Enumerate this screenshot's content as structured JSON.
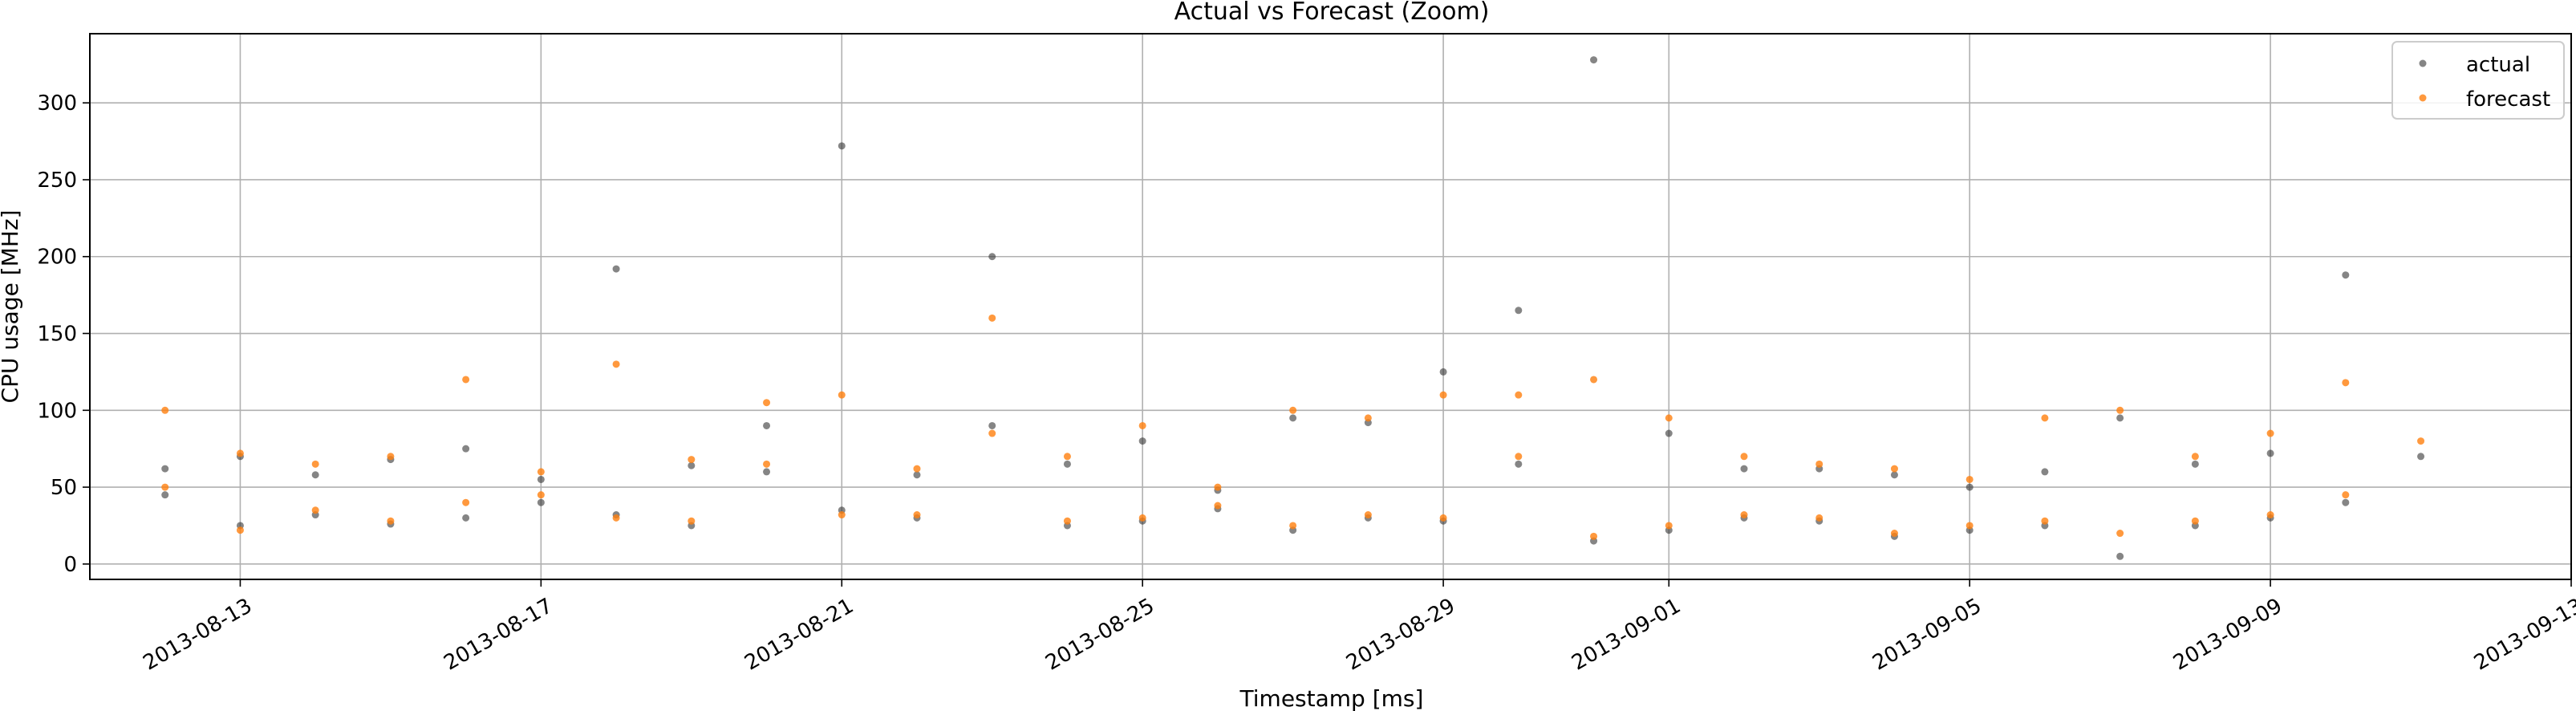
{
  "chart_data": {
    "type": "scatter",
    "title": "Actual vs Forecast (Zoom)",
    "xlabel": "Timestamp [ms]",
    "ylabel": "CPU usage [MHz]",
    "x_ticks": [
      "2013-08-13",
      "2013-08-17",
      "2013-08-21",
      "2013-08-25",
      "2013-08-29",
      "2013-09-01",
      "2013-09-05",
      "2013-09-09",
      "2013-09-13"
    ],
    "y_ticks": [
      0,
      50,
      100,
      150,
      200,
      250,
      300
    ],
    "xlim": [
      "2013-08-11",
      "2013-09-13"
    ],
    "ylim": [
      -10,
      345
    ],
    "grid": true,
    "legend_position": "top-right",
    "colors": {
      "actual": "#333333",
      "forecast": "#ff7f0e"
    },
    "series": [
      {
        "name": "actual",
        "x": [
          "2013-08-12",
          "2013-08-12",
          "2013-08-13",
          "2013-08-13",
          "2013-08-14",
          "2013-08-14",
          "2013-08-15",
          "2013-08-15",
          "2013-08-16",
          "2013-08-16",
          "2013-08-17",
          "2013-08-17",
          "2013-08-18",
          "2013-08-18",
          "2013-08-19",
          "2013-08-19",
          "2013-08-20",
          "2013-08-20",
          "2013-08-21",
          "2013-08-21",
          "2013-08-22",
          "2013-08-22",
          "2013-08-23",
          "2013-08-23",
          "2013-08-24",
          "2013-08-24",
          "2013-08-25",
          "2013-08-25",
          "2013-08-26",
          "2013-08-26",
          "2013-08-27",
          "2013-08-27",
          "2013-08-28",
          "2013-08-28",
          "2013-08-29",
          "2013-08-29",
          "2013-08-30",
          "2013-08-30",
          "2013-08-31",
          "2013-08-31",
          "2013-09-01",
          "2013-09-01",
          "2013-09-02",
          "2013-09-02",
          "2013-09-03",
          "2013-09-03",
          "2013-09-04",
          "2013-09-04",
          "2013-09-05",
          "2013-09-05",
          "2013-09-06",
          "2013-09-06",
          "2013-09-07",
          "2013-09-07",
          "2013-09-08",
          "2013-09-08",
          "2013-09-09",
          "2013-09-09",
          "2013-09-10",
          "2013-09-10",
          "2013-09-11"
        ],
        "y": [
          62,
          45,
          25,
          70,
          58,
          32,
          26,
          68,
          30,
          75,
          55,
          40,
          192,
          32,
          64,
          25,
          90,
          60,
          272,
          35,
          58,
          30,
          200,
          90,
          25,
          65,
          28,
          80,
          48,
          36,
          95,
          22,
          92,
          30,
          125,
          28,
          165,
          65,
          328,
          15,
          85,
          22,
          62,
          30,
          62,
          28,
          58,
          18,
          22,
          50,
          60,
          25,
          95,
          5,
          65,
          25,
          72,
          30,
          188,
          40,
          70
        ]
      },
      {
        "name": "forecast",
        "x": [
          "2013-08-12",
          "2013-08-12",
          "2013-08-13",
          "2013-08-13",
          "2013-08-14",
          "2013-08-14",
          "2013-08-15",
          "2013-08-15",
          "2013-08-16",
          "2013-08-16",
          "2013-08-17",
          "2013-08-17",
          "2013-08-18",
          "2013-08-18",
          "2013-08-19",
          "2013-08-19",
          "2013-08-20",
          "2013-08-20",
          "2013-08-21",
          "2013-08-21",
          "2013-08-22",
          "2013-08-22",
          "2013-08-23",
          "2013-08-23",
          "2013-08-24",
          "2013-08-24",
          "2013-08-25",
          "2013-08-25",
          "2013-08-26",
          "2013-08-26",
          "2013-08-27",
          "2013-08-27",
          "2013-08-28",
          "2013-08-28",
          "2013-08-29",
          "2013-08-29",
          "2013-08-30",
          "2013-08-30",
          "2013-08-31",
          "2013-08-31",
          "2013-09-01",
          "2013-09-01",
          "2013-09-02",
          "2013-09-02",
          "2013-09-03",
          "2013-09-03",
          "2013-09-04",
          "2013-09-04",
          "2013-09-05",
          "2013-09-05",
          "2013-09-06",
          "2013-09-06",
          "2013-09-07",
          "2013-09-07",
          "2013-09-08",
          "2013-09-08",
          "2013-09-09",
          "2013-09-09",
          "2013-09-10",
          "2013-09-10",
          "2013-09-11"
        ],
        "y": [
          100,
          50,
          22,
          72,
          65,
          35,
          28,
          70,
          40,
          120,
          60,
          45,
          130,
          30,
          68,
          28,
          105,
          65,
          110,
          32,
          62,
          32,
          160,
          85,
          28,
          70,
          30,
          90,
          50,
          38,
          100,
          25,
          95,
          32,
          110,
          30,
          110,
          70,
          120,
          18,
          95,
          25,
          70,
          32,
          65,
          30,
          62,
          20,
          25,
          55,
          95,
          28,
          100,
          20,
          70,
          28,
          85,
          32,
          118,
          45,
          80
        ]
      }
    ]
  }
}
